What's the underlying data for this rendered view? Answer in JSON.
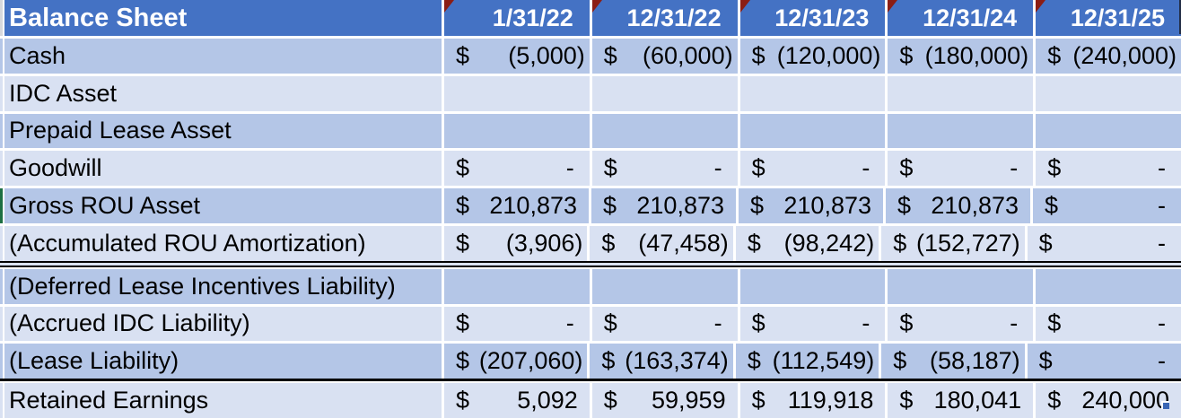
{
  "colors": {
    "header_bg": "#4472C4",
    "row_dark": "#B4C6E7",
    "row_light": "#D9E1F2",
    "gridline": "#FFFFFF",
    "text": "#000000",
    "header_text": "#FFFFFF",
    "comment_red": "#8B1D14",
    "marker_green": "#1D6F42",
    "handle_blue": "#3A66B5",
    "edge_dark": "#232E46"
  },
  "icons": {
    "comment_indicator": "red triangle flag, top-left corner of each date header cell",
    "fill_handle": "small blue square at bottom-right of last cell",
    "row_marker": "green strip at left edge of Gross ROU Asset row"
  },
  "table": {
    "title": "Balance Sheet",
    "columns": [
      "1/31/22",
      "12/31/22",
      "12/31/23",
      "12/31/24",
      "12/31/25"
    ],
    "rows": [
      {
        "label": "Cash",
        "shade": "dark",
        "divider_below": null,
        "marker": null,
        "cells": [
          {
            "c": "$",
            "v": "(5,000)",
            "t": "neg"
          },
          {
            "c": "$",
            "v": "(60,000)",
            "t": "neg"
          },
          {
            "c": "$",
            "v": "(120,000)",
            "t": "neg"
          },
          {
            "c": "$",
            "v": "(180,000)",
            "t": "neg"
          },
          {
            "c": "$",
            "v": "(240,000)",
            "t": "neg"
          }
        ]
      },
      {
        "label": "IDC Asset",
        "shade": "light",
        "divider_below": null,
        "marker": null,
        "cells": [
          null,
          null,
          null,
          null,
          null
        ]
      },
      {
        "label": "Prepaid Lease Asset",
        "shade": "dark",
        "divider_below": null,
        "marker": null,
        "cells": [
          null,
          null,
          null,
          null,
          null
        ]
      },
      {
        "label": "Goodwill",
        "shade": "light",
        "divider_below": null,
        "marker": null,
        "cells": [
          {
            "c": "$",
            "v": "-",
            "t": "dash"
          },
          {
            "c": "$",
            "v": "-",
            "t": "dash"
          },
          {
            "c": "$",
            "v": "-",
            "t": "dash"
          },
          {
            "c": "$",
            "v": "-",
            "t": "dash"
          },
          {
            "c": "$",
            "v": "-",
            "t": "dash"
          }
        ]
      },
      {
        "label": "Gross ROU Asset",
        "shade": "dark",
        "divider_below": null,
        "marker": "green",
        "cells": [
          {
            "c": "$",
            "v": "210,873",
            "t": "pos"
          },
          {
            "c": "$",
            "v": "210,873",
            "t": "pos"
          },
          {
            "c": "$",
            "v": "210,873",
            "t": "pos"
          },
          {
            "c": "$",
            "v": "210,873",
            "t": "pos"
          },
          {
            "c": "$",
            "v": "-",
            "t": "dash"
          }
        ]
      },
      {
        "label": "(Accumulated ROU Amortization)",
        "shade": "light",
        "divider_below": "double",
        "marker": null,
        "cells": [
          {
            "c": "$",
            "v": "(3,906)",
            "t": "neg"
          },
          {
            "c": "$",
            "v": "(47,458)",
            "t": "neg"
          },
          {
            "c": "$",
            "v": "(98,242)",
            "t": "neg"
          },
          {
            "c": "$",
            "v": "(152,727)",
            "t": "neg"
          },
          {
            "c": "$",
            "v": "-",
            "t": "dash"
          }
        ]
      },
      {
        "label": "(Deferred Lease Incentives Liability)",
        "shade": "dark",
        "divider_below": null,
        "marker": null,
        "cells": [
          null,
          null,
          null,
          null,
          null
        ]
      },
      {
        "label": "(Accrued IDC Liability)",
        "shade": "light",
        "divider_below": null,
        "marker": null,
        "cells": [
          {
            "c": "$",
            "v": "-",
            "t": "dash"
          },
          {
            "c": "$",
            "v": "-",
            "t": "dash"
          },
          {
            "c": "$",
            "v": "-",
            "t": "dash"
          },
          {
            "c": "$",
            "v": "-",
            "t": "dash"
          },
          {
            "c": "$",
            "v": "-",
            "t": "dash"
          }
        ]
      },
      {
        "label": "(Lease Liability)",
        "shade": "dark",
        "divider_below": "thick",
        "marker": null,
        "cells": [
          {
            "c": "$",
            "v": "(207,060)",
            "t": "neg"
          },
          {
            "c": "$",
            "v": "(163,374)",
            "t": "neg"
          },
          {
            "c": "$",
            "v": "(112,549)",
            "t": "neg"
          },
          {
            "c": "$",
            "v": "(58,187)",
            "t": "neg"
          },
          {
            "c": "$",
            "v": "-",
            "t": "dash"
          }
        ]
      },
      {
        "label": "Retained Earnings",
        "shade": "light",
        "divider_below": null,
        "marker": null,
        "cells": [
          {
            "c": "$",
            "v": "5,092",
            "t": "pos"
          },
          {
            "c": "$",
            "v": "59,959",
            "t": "pos"
          },
          {
            "c": "$",
            "v": "119,918",
            "t": "pos"
          },
          {
            "c": "$",
            "v": "180,041",
            "t": "pos"
          },
          {
            "c": "$",
            "v": "240,000",
            "t": "pos"
          }
        ]
      }
    ]
  }
}
